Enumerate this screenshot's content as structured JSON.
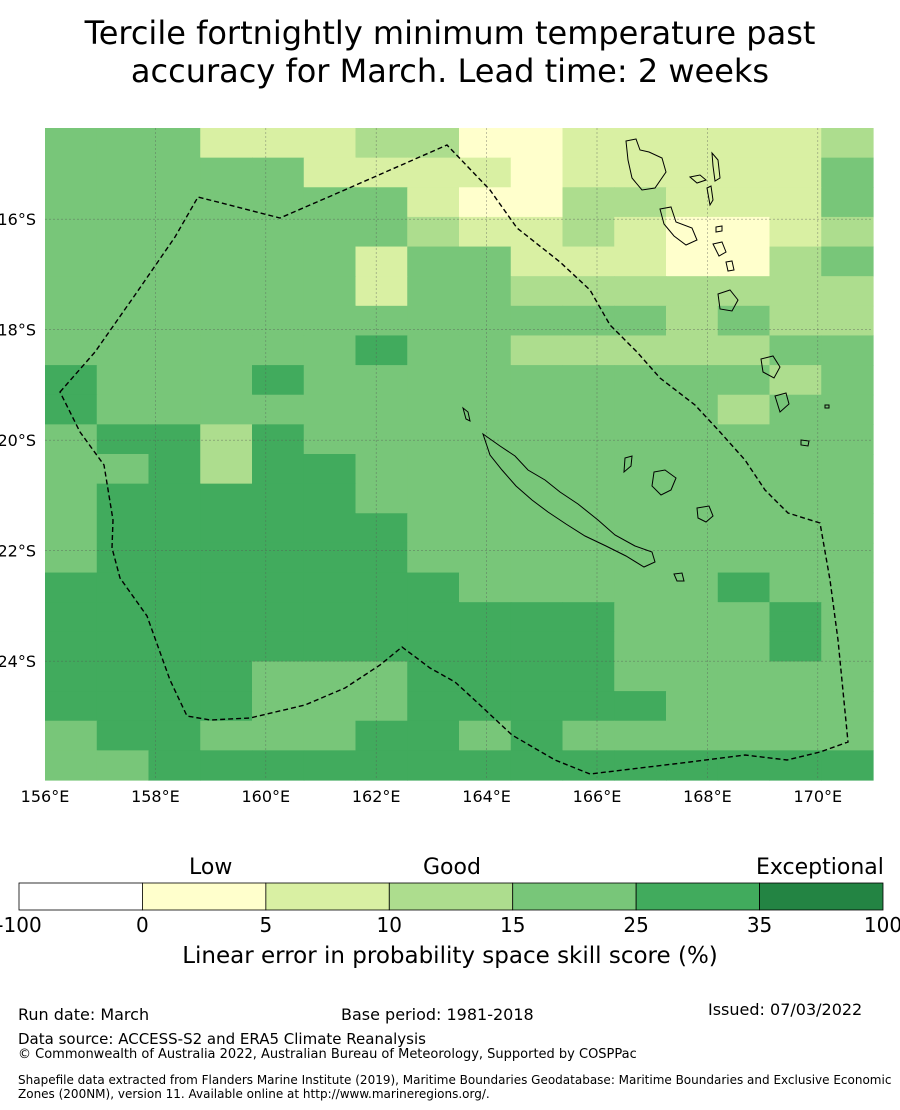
{
  "title": {
    "line1": "Tercile fortnightly minimum temperature past",
    "line2": "accuracy for March. Lead time: 2 weeks"
  },
  "map": {
    "lon_range": [
      156,
      171
    ],
    "lat_range": [
      -26.15,
      -14.35
    ],
    "lon_ticks": [
      {
        "value": 156,
        "label": "156°E"
      },
      {
        "value": 158,
        "label": "158°E"
      },
      {
        "value": 160,
        "label": "160°E"
      },
      {
        "value": 162,
        "label": "162°E"
      },
      {
        "value": 164,
        "label": "164°E"
      },
      {
        "value": 166,
        "label": "166°E"
      },
      {
        "value": 168,
        "label": "168°E"
      },
      {
        "value": 170,
        "label": "170°E"
      }
    ],
    "lat_ticks": [
      {
        "value": -16,
        "label": "16°S"
      },
      {
        "value": -18,
        "label": "18°S"
      },
      {
        "value": -20,
        "label": "20°S"
      },
      {
        "value": -22,
        "label": "22°S"
      },
      {
        "value": -24,
        "label": "24°S"
      }
    ],
    "cell_grid": {
      "note": "skill category per ~0.83° cell, rows north→south, cols west→east; values are colorbar bin indices (1:0-5, 2:5-10, 3:10-15, 4:15-25, 5:25-35)",
      "rows": [
        "4442223311222223",
        "4444422221222224",
        "4444444211332224",
        "4444444322321123",
        "4444442442221134",
        "4444442443333333",
        "4444444444443433",
        "4444445443333344",
        "5444544444444434",
        "5444444444444344",
        "4553544444444444",
        "4453554444444444",
        "4555554444444444",
        "4555555444444444",
        "4555555444444444",
        "5555555544444544",
        "5555555555544454",
        "5555555555544454",
        "5555444555544444",
        "5555444555554444",
        "4554445545444444",
        "4455555555555555"
      ]
    },
    "colors": {
      "bins": [
        "#ffffff",
        "#ffffcc",
        "#d9f0a3",
        "#addd8e",
        "#78c679",
        "#41ab5d",
        "#238443"
      ],
      "coastline": "#000000",
      "eez_line": "#000000",
      "grid_line": "#555555"
    }
  },
  "colorbar": {
    "category_low": "Low",
    "category_good": "Good",
    "category_exceptional": "Exceptional",
    "ticks": [
      "-100",
      "0",
      "5",
      "10",
      "15",
      "25",
      "35",
      "100"
    ],
    "title": "Linear error in probability space skill score (%)"
  },
  "footer": {
    "run_date": "Run date: March",
    "base_period": "Base period: 1981-2018",
    "issued": "Issued: 07/03/2022",
    "data_source": "Data source: ACCESS-S2 and ERA5 Climate Reanalysis",
    "copyright": "© Commonwealth of Australia 2022, Australian Bureau of Meteorology, Supported by COSPPac",
    "shapefile_line1": "Shapefile data extracted from Flanders Marine Institute (2019), Maritime Boundaries Geodatabase: Maritime Boundaries and Exclusive Economic",
    "shapefile_line2": "Zones (200NM), version 11. Available online at http://www.marineregions.org/."
  }
}
